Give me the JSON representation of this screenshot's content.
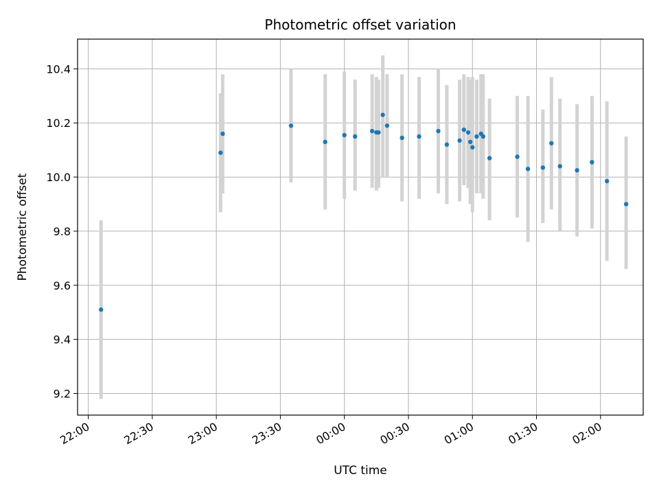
{
  "chart_data": {
    "type": "scatter",
    "title": "Photometric offset variation",
    "xlabel": "UTC time",
    "ylabel": "Photometric offset",
    "x_axis_type": "time",
    "xlim": [
      "21:55",
      "02:20"
    ],
    "ylim": [
      9.12,
      10.51
    ],
    "x_ticks": [
      "22:00",
      "22:30",
      "23:00",
      "23:30",
      "00:00",
      "00:30",
      "01:00",
      "01:30",
      "02:00"
    ],
    "y_ticks": [
      "9.2",
      "9.4",
      "9.6",
      "9.8",
      "10.0",
      "10.2",
      "10.4"
    ],
    "grid": true,
    "colors": {
      "point": "#1f77b4",
      "errorbar": "#d3d3d3",
      "grid": "#b0b0b0"
    },
    "points": [
      {
        "time": "22:06",
        "y": 9.51,
        "err_low": 9.18,
        "err_high": 9.84
      },
      {
        "time": "23:02",
        "y": 10.09,
        "err_low": 9.87,
        "err_high": 10.31
      },
      {
        "time": "23:03",
        "y": 10.16,
        "err_low": 9.94,
        "err_high": 10.38
      },
      {
        "time": "23:35",
        "y": 10.19,
        "err_low": 9.98,
        "err_high": 10.4
      },
      {
        "time": "23:51",
        "y": 10.13,
        "err_low": 9.88,
        "err_high": 10.38
      },
      {
        "time": "00:00",
        "y": 10.155,
        "err_low": 9.92,
        "err_high": 10.39
      },
      {
        "time": "00:05",
        "y": 10.15,
        "err_low": 9.95,
        "err_high": 10.36
      },
      {
        "time": "00:13",
        "y": 10.17,
        "err_low": 9.96,
        "err_high": 10.38
      },
      {
        "time": "00:15",
        "y": 10.165,
        "err_low": 9.95,
        "err_high": 10.37
      },
      {
        "time": "00:16",
        "y": 10.165,
        "err_low": 9.96,
        "err_high": 10.36
      },
      {
        "time": "00:18",
        "y": 10.23,
        "err_low": 10.0,
        "err_high": 10.45
      },
      {
        "time": "00:20",
        "y": 10.19,
        "err_low": 10.0,
        "err_high": 10.38
      },
      {
        "time": "00:27",
        "y": 10.145,
        "err_low": 9.91,
        "err_high": 10.38
      },
      {
        "time": "00:35",
        "y": 10.15,
        "err_low": 9.92,
        "err_high": 10.37
      },
      {
        "time": "00:44",
        "y": 10.17,
        "err_low": 9.94,
        "err_high": 10.4
      },
      {
        "time": "00:48",
        "y": 10.12,
        "err_low": 9.9,
        "err_high": 10.34
      },
      {
        "time": "00:54",
        "y": 10.135,
        "err_low": 9.91,
        "err_high": 10.36
      },
      {
        "time": "00:56",
        "y": 10.175,
        "err_low": 9.97,
        "err_high": 10.38
      },
      {
        "time": "00:58",
        "y": 10.165,
        "err_low": 9.96,
        "err_high": 10.37
      },
      {
        "time": "00:59",
        "y": 10.13,
        "err_low": 9.9,
        "err_high": 10.36
      },
      {
        "time": "01:00",
        "y": 10.11,
        "err_low": 9.87,
        "err_high": 10.37
      },
      {
        "time": "01:02",
        "y": 10.15,
        "err_low": 9.94,
        "err_high": 10.36
      },
      {
        "time": "01:04",
        "y": 10.16,
        "err_low": 9.94,
        "err_high": 10.38
      },
      {
        "time": "01:05",
        "y": 10.15,
        "err_low": 9.92,
        "err_high": 10.38
      },
      {
        "time": "01:08",
        "y": 10.07,
        "err_low": 9.84,
        "err_high": 10.29
      },
      {
        "time": "01:21",
        "y": 10.075,
        "err_low": 9.85,
        "err_high": 10.3
      },
      {
        "time": "01:26",
        "y": 10.03,
        "err_low": 9.76,
        "err_high": 10.3
      },
      {
        "time": "01:33",
        "y": 10.035,
        "err_low": 9.83,
        "err_high": 10.25
      },
      {
        "time": "01:37",
        "y": 10.125,
        "err_low": 9.88,
        "err_high": 10.37
      },
      {
        "time": "01:41",
        "y": 10.04,
        "err_low": 9.8,
        "err_high": 10.29
      },
      {
        "time": "01:49",
        "y": 10.025,
        "err_low": 9.78,
        "err_high": 10.27
      },
      {
        "time": "01:56",
        "y": 10.055,
        "err_low": 9.81,
        "err_high": 10.3
      },
      {
        "time": "02:03",
        "y": 9.985,
        "err_low": 9.69,
        "err_high": 10.28
      },
      {
        "time": "02:12",
        "y": 9.9,
        "err_low": 9.66,
        "err_high": 10.15
      }
    ]
  }
}
